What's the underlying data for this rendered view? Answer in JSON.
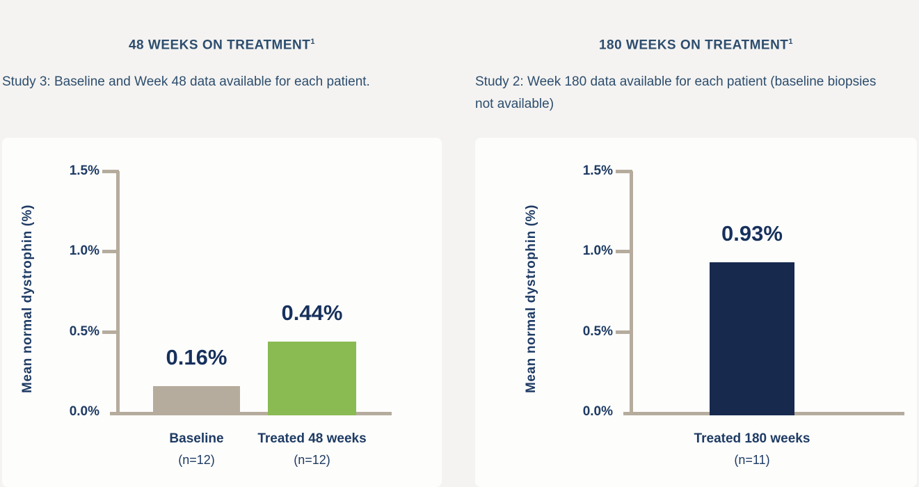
{
  "page_background": "#f4f3f1",
  "colors": {
    "heading_navy": "#2d4d6e",
    "axis_text_navy": "#1e3b63",
    "value_navy": "#17315c",
    "tan": "#b5ac9d",
    "green": "#8aba52",
    "navy_bar": "#17294d",
    "card_white": "#fdfdfc"
  },
  "chart_data": [
    {
      "type": "bar",
      "title": "48 WEEKS ON TREATMENT",
      "title_superscript": "1",
      "subtitle": "Study 3: Baseline and Week 48 data available for each patient.",
      "ylabel": "Mean normal dystrophin (%)",
      "ylim": [
        0,
        1.5
      ],
      "grid": false,
      "yticks": [
        {
          "label": "1.5%",
          "value": 1.5
        },
        {
          "label": "1.0%",
          "value": 1.0
        },
        {
          "label": "0.5%",
          "value": 0.5
        },
        {
          "label": "0.0%",
          "value": 0.0
        }
      ],
      "bars": [
        {
          "category": "Baseline",
          "n_label": "(n=12)",
          "value": 0.16,
          "value_label": "0.16%",
          "color": "#b5ac9d"
        },
        {
          "category": "Treated 48 weeks",
          "n_label": "(n=12)",
          "value": 0.44,
          "value_label": "0.44%",
          "color": "#8aba52"
        }
      ]
    },
    {
      "type": "bar",
      "title": "180 WEEKS ON TREATMENT",
      "title_superscript": "1",
      "subtitle": "Study 2: Week 180 data available for each patient (baseline biopsies not available)",
      "ylabel": "Mean normal dystrophin (%)",
      "ylim": [
        0,
        1.5
      ],
      "grid": false,
      "yticks": [
        {
          "label": "1.5%",
          "value": 1.5
        },
        {
          "label": "1.0%",
          "value": 1.0
        },
        {
          "label": "0.5%",
          "value": 0.5
        },
        {
          "label": "0.0%",
          "value": 0.0
        }
      ],
      "bars": [
        {
          "category": "Treated 180 weeks",
          "n_label": "(n=11)",
          "value": 0.93,
          "value_label": "0.93%",
          "color": "#17294d"
        }
      ]
    }
  ]
}
